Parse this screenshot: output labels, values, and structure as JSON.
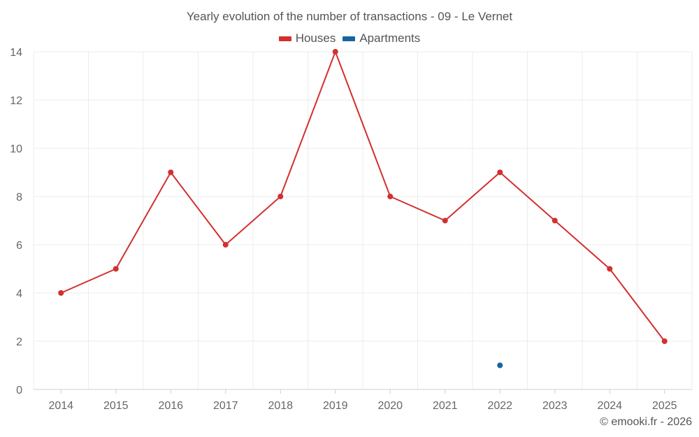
{
  "chart_data": {
    "type": "line",
    "title": "Yearly evolution of the number of transactions - 09 - Le Vernet",
    "categories": [
      "2014",
      "2015",
      "2016",
      "2017",
      "2018",
      "2019",
      "2020",
      "2021",
      "2022",
      "2023",
      "2024",
      "2025"
    ],
    "series": [
      {
        "name": "Houses",
        "color": "#d32f2f",
        "values": [
          4,
          5,
          9,
          6,
          8,
          14,
          8,
          7,
          9,
          7,
          5,
          2
        ]
      },
      {
        "name": "Apartments",
        "color": "#1565a0",
        "values": [
          null,
          null,
          null,
          null,
          null,
          null,
          null,
          null,
          1,
          null,
          null,
          null
        ]
      }
    ],
    "yticks": [
      "0",
      "2",
      "4",
      "6",
      "8",
      "10",
      "12",
      "14"
    ],
    "ylim": [
      0,
      14
    ],
    "grid": true,
    "legend_position": "top-center",
    "xlabel": "",
    "ylabel": ""
  },
  "credit": "© emooki.fr - 2026"
}
